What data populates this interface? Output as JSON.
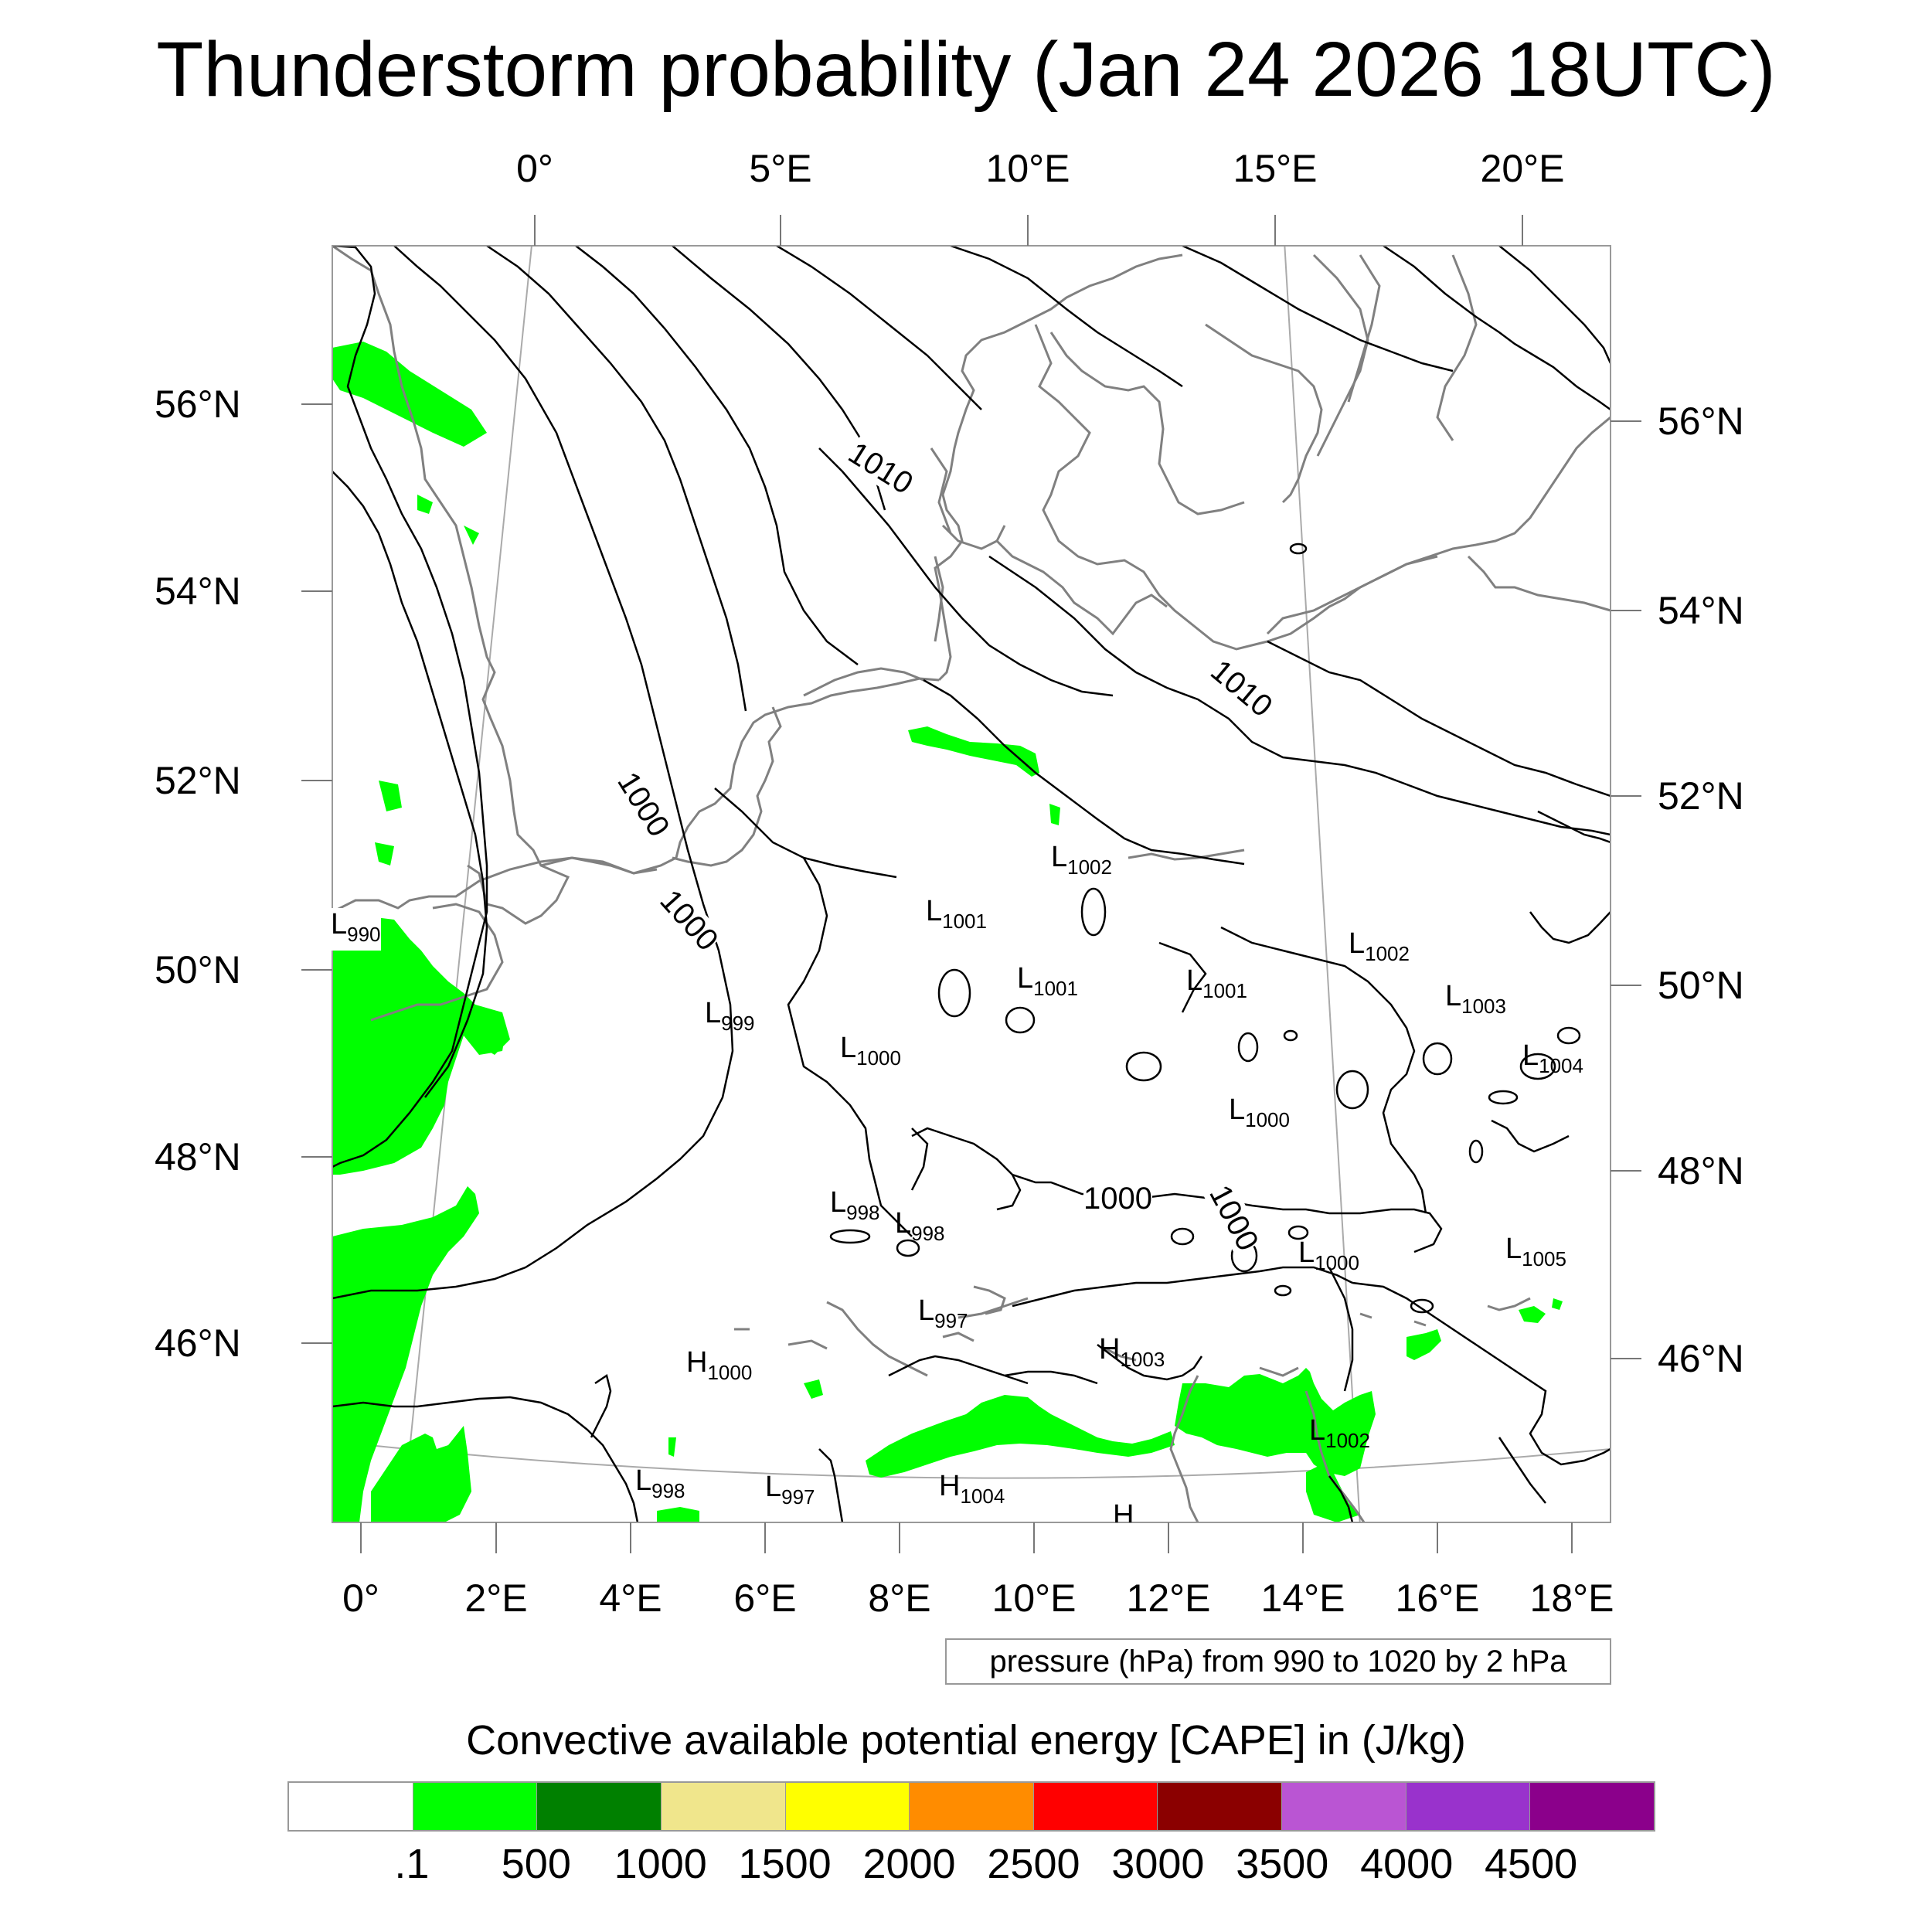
{
  "title": "Thunderstorm probability (Jan 24 2026 18UTC)",
  "top_lon_labels": [
    "0°",
    "5°E",
    "10°E",
    "15°E",
    "20°E"
  ],
  "bottom_lon_labels": [
    "0°",
    "2°E",
    "4°E",
    "6°E",
    "8°E",
    "10°E",
    "12°E",
    "14°E",
    "16°E",
    "18°E"
  ],
  "left_lat_labels": [
    "56°N",
    "54°N",
    "52°N",
    "50°N",
    "48°N",
    "46°N"
  ],
  "right_lat_labels": [
    "56°N",
    "54°N",
    "52°N",
    "50°N",
    "48°N",
    "46°N"
  ],
  "isobar_labels": [
    "1010",
    "1010",
    "1000",
    "1000",
    "1000",
    "1000"
  ],
  "pressure_centers": [
    {
      "type": "L",
      "value": "990"
    },
    {
      "type": "L",
      "value": "1002"
    },
    {
      "type": "L",
      "value": "1001"
    },
    {
      "type": "L",
      "value": "1001"
    },
    {
      "type": "L",
      "value": "1001"
    },
    {
      "type": "L",
      "value": "1002"
    },
    {
      "type": "L",
      "value": "1003"
    },
    {
      "type": "L",
      "value": "999"
    },
    {
      "type": "L",
      "value": "1000"
    },
    {
      "type": "L",
      "value": "1004"
    },
    {
      "type": "L",
      "value": "1000"
    },
    {
      "type": "L",
      "value": "998"
    },
    {
      "type": "L",
      "value": "998"
    },
    {
      "type": "L",
      "value": "1000"
    },
    {
      "type": "L",
      "value": "1005"
    },
    {
      "type": "L",
      "value": "997"
    },
    {
      "type": "H",
      "value": "1000"
    },
    {
      "type": "H",
      "value": "1003"
    },
    {
      "type": "L",
      "value": "1002"
    },
    {
      "type": "L",
      "value": "998"
    },
    {
      "type": "L",
      "value": "997"
    },
    {
      "type": "H",
      "value": "1004"
    },
    {
      "type": "H",
      "value": ""
    }
  ],
  "pressure_note": "pressure (hPa) from 990 to 1020 by 2 hPa",
  "colorbar": {
    "title": "Convective available potential energy [CAPE] in (J/kg)",
    "colors": [
      "#ffffff",
      "#00ff00",
      "#008000",
      "#f0e68c",
      "#ffff00",
      "#ff8c00",
      "#ff0000",
      "#8b0000",
      "#ba55d3",
      "#9932cc",
      "#8b008b"
    ],
    "tick_labels": [
      ".1",
      "500",
      "1000",
      "1500",
      "2000",
      "2500",
      "3000",
      "3500",
      "4000",
      "4500"
    ]
  },
  "colors": {
    "cape_shading": "#00ff00",
    "coastline": "#808080",
    "isobar": "#000000",
    "frame": "#999999"
  }
}
